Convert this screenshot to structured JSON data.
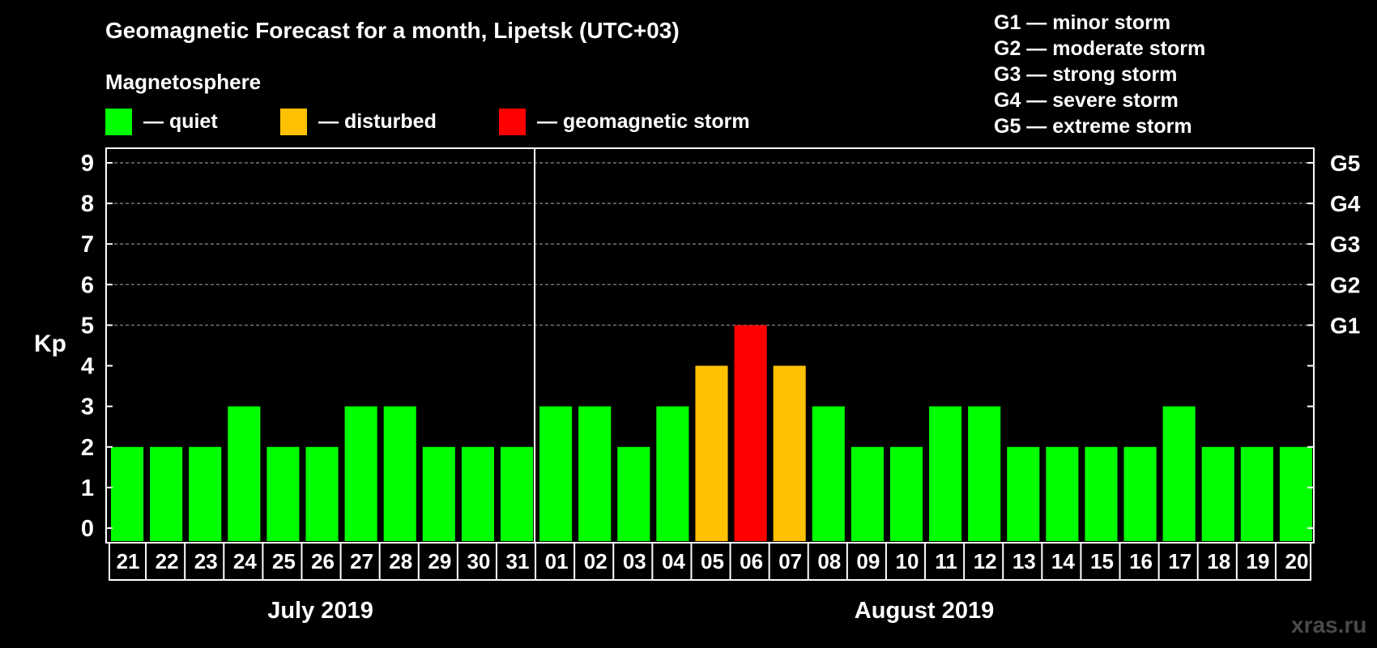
{
  "title": "Geomagnetic Forecast for a month, Lipetsk (UTC+03)",
  "subtitle": "Magnetosphere",
  "legend": [
    {
      "label": "— quiet",
      "color": "#00ff00"
    },
    {
      "label": "— disturbed",
      "color": "#ffc000"
    },
    {
      "label": "— geomagnetic storm",
      "color": "#ff0000"
    }
  ],
  "g_scale": [
    "G1 — minor storm",
    "G2 — moderate storm",
    "G3 — strong storm",
    "G4 — severe storm",
    "G5 — extreme storm"
  ],
  "watermark": "xras.ru",
  "chart_data": {
    "type": "bar",
    "ylabel": "Kp",
    "ylim": [
      0,
      9
    ],
    "yticks": [
      "0",
      "1",
      "2",
      "3",
      "4",
      "5",
      "6",
      "7",
      "8",
      "9"
    ],
    "right_ticks": [
      {
        "value": 5,
        "label": "G1"
      },
      {
        "value": 6,
        "label": "G2"
      },
      {
        "value": 7,
        "label": "G3"
      },
      {
        "value": 8,
        "label": "G4"
      },
      {
        "value": 9,
        "label": "G5"
      }
    ],
    "grid": "dashed at Kp 5-9",
    "categories": [
      "21",
      "22",
      "23",
      "24",
      "25",
      "26",
      "27",
      "28",
      "29",
      "30",
      "31",
      "01",
      "02",
      "03",
      "04",
      "05",
      "06",
      "07",
      "08",
      "09",
      "10",
      "11",
      "12",
      "13",
      "14",
      "15",
      "16",
      "17",
      "18",
      "19",
      "20"
    ],
    "values": [
      2,
      2,
      2,
      3,
      2,
      2,
      3,
      3,
      2,
      2,
      2,
      3,
      3,
      2,
      3,
      4,
      5,
      4,
      3,
      2,
      2,
      3,
      3,
      2,
      2,
      2,
      2,
      3,
      2,
      2,
      2
    ],
    "level_colors": {
      "quiet": "#00ff00",
      "disturbed": "#ffc000",
      "storm": "#ff0000"
    },
    "months": [
      {
        "label": "July 2019",
        "count": 11
      },
      {
        "label": "August 2019",
        "count": 20
      }
    ]
  }
}
